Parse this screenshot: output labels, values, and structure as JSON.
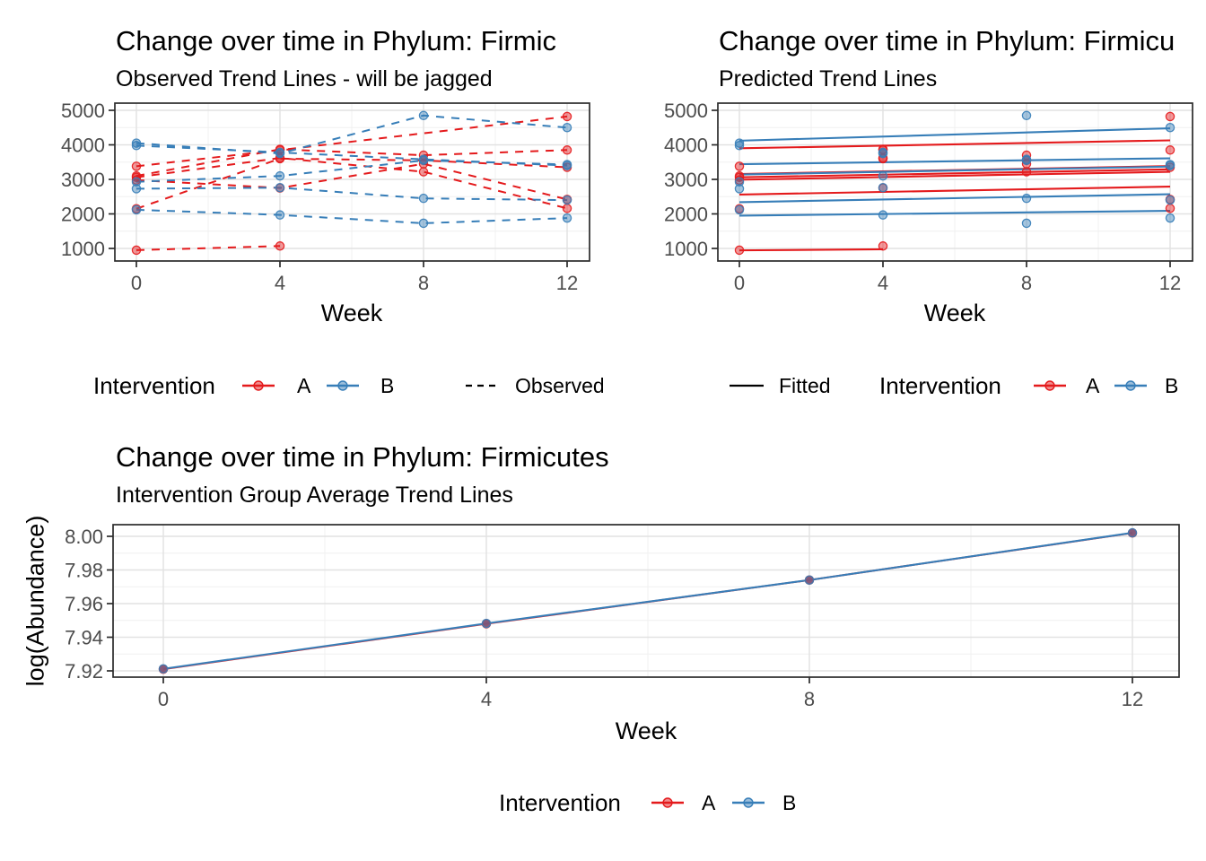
{
  "figure": {
    "background": "#FFFFFF"
  },
  "colors": {
    "group_a": "#E41A1C",
    "group_b": "#377EB8",
    "axis_text": "#4D4D4D",
    "title_text": "#000000",
    "grid_major": "#E2E2E2",
    "grid_minor": "#F0F0F0",
    "panel_border": "#2B2B2B",
    "legend_line": "#000000"
  },
  "charts": {
    "observed": {
      "title": "Change over time in Phylum: Firmic",
      "subtitle": "Observed Trend Lines - will be jagged",
      "xlabel": "Week"
    },
    "predicted": {
      "title": "Change over time in Phylum: Firmicu",
      "subtitle": "Predicted Trend Lines",
      "xlabel": "Week"
    },
    "average": {
      "title": "Change over time in Phylum: Firmicutes",
      "subtitle": "Intervention Group Average Trend Lines",
      "xlabel": "Week",
      "ylabel": "log(Abundance)"
    }
  },
  "legends": {
    "observed": {
      "title": "Intervention",
      "item_a": "A",
      "item_b": "B",
      "linetype_label": "Observed"
    },
    "predicted": {
      "linetype_label": "Fitted",
      "title": "Intervention",
      "item_a": "A",
      "item_b": "B"
    },
    "average": {
      "title": "Intervention",
      "item_a": "A",
      "item_b": "B"
    }
  },
  "chart_data": [
    {
      "id": "observed",
      "type": "line",
      "line_style": "dashed",
      "title": "Change over time in Phylum: Firmic",
      "subtitle": "Observed Trend Lines - will be jagged",
      "xlabel": "Week",
      "x": [
        0,
        4,
        8,
        12
      ],
      "x_tick_labels": [
        "0",
        "4",
        "8",
        "12"
      ],
      "x_minor": [
        2,
        6,
        10
      ],
      "y_ticks": [
        1000,
        2000,
        3000,
        4000,
        5000
      ],
      "y_tick_labels": [
        "1000",
        "2000",
        "3000",
        "4000",
        "5000"
      ],
      "y_minor": [
        1500,
        2500,
        3500,
        4500
      ],
      "xlim": [
        -0.6,
        12.6
      ],
      "ylim": [
        660,
        5190
      ],
      "legend_position": "bottom",
      "groups": {
        "A": "#E41A1C",
        "B": "#377EB8"
      },
      "subjects": [
        {
          "id": "A1",
          "group": "A",
          "values": [
            950,
            1070,
            null,
            null
          ]
        },
        {
          "id": "A2",
          "group": "A",
          "values": [
            2150,
            3600,
            3550,
            3350
          ]
        },
        {
          "id": "A3",
          "group": "A",
          "values": [
            3380,
            3850,
            null,
            4820
          ]
        },
        {
          "id": "A4",
          "group": "A",
          "values": [
            3100,
            3870,
            3700,
            3850
          ]
        },
        {
          "id": "A5",
          "group": "A",
          "values": [
            3060,
            3620,
            3220,
            2160
          ]
        },
        {
          "id": "A6",
          "group": "A",
          "values": [
            2980,
            2750,
            3450,
            2420
          ]
        },
        {
          "id": "B1",
          "group": "B",
          "values": [
            4050,
            3750,
            4850,
            4500
          ]
        },
        {
          "id": "B2",
          "group": "B",
          "values": [
            3980,
            3780,
            3580,
            3400
          ]
        },
        {
          "id": "B3",
          "group": "B",
          "values": [
            2930,
            3100,
            3550,
            3430
          ]
        },
        {
          "id": "B4",
          "group": "B",
          "values": [
            2730,
            2760,
            2450,
            2400
          ]
        },
        {
          "id": "B5",
          "group": "B",
          "values": [
            2120,
            1970,
            1730,
            1880
          ]
        }
      ]
    },
    {
      "id": "predicted",
      "type": "line",
      "line_style": "solid",
      "title": "Change over time in Phylum: Firmicu",
      "subtitle": "Predicted Trend Lines",
      "xlabel": "Week",
      "x": [
        0,
        4,
        8,
        12
      ],
      "x_tick_labels": [
        "0",
        "4",
        "8",
        "12"
      ],
      "x_minor": [
        2,
        6,
        10
      ],
      "y_ticks": [
        1000,
        2000,
        3000,
        4000,
        5000
      ],
      "y_tick_labels": [
        "1000",
        "2000",
        "3000",
        "4000",
        "5000"
      ],
      "y_minor": [
        1500,
        2500,
        3500,
        4500
      ],
      "xlim": [
        -0.6,
        12.6
      ],
      "ylim": [
        660,
        5190
      ],
      "legend_position": "bottom",
      "groups": {
        "A": "#E41A1C",
        "B": "#377EB8"
      },
      "subjects": [
        {
          "id": "A1",
          "group": "A",
          "values": [
            950,
            1070,
            null,
            null
          ],
          "fit_weeks": [
            0,
            4
          ],
          "fit_values": [
            945,
            975
          ]
        },
        {
          "id": "A2",
          "group": "A",
          "values": [
            2150,
            3600,
            3550,
            3350
          ],
          "fit_weeks": [
            0,
            12
          ],
          "fit_values": [
            3060,
            3290
          ]
        },
        {
          "id": "A3",
          "group": "A",
          "values": [
            3380,
            3850,
            null,
            4820
          ],
          "fit_weeks": [
            0,
            12
          ],
          "fit_values": [
            3900,
            4130
          ]
        },
        {
          "id": "A4",
          "group": "A",
          "values": [
            3100,
            3870,
            3700,
            3850
          ],
          "fit_weeks": [
            0,
            12
          ],
          "fit_values": [
            3155,
            3385
          ]
        },
        {
          "id": "A5",
          "group": "A",
          "values": [
            3060,
            3620,
            3220,
            2160
          ],
          "fit_weeks": [
            0,
            12
          ],
          "fit_values": [
            2990,
            3220
          ]
        },
        {
          "id": "A6",
          "group": "A",
          "values": [
            2980,
            2750,
            3450,
            2420
          ],
          "fit_weeks": [
            0,
            12
          ],
          "fit_values": [
            2560,
            2790
          ]
        },
        {
          "id": "B1",
          "group": "B",
          "values": [
            4050,
            3750,
            4850,
            4500
          ],
          "fit_weeks": [
            0,
            12
          ],
          "fit_values": [
            4120,
            4480
          ]
        },
        {
          "id": "B2",
          "group": "B",
          "values": [
            3980,
            3780,
            3580,
            3400
          ],
          "fit_weeks": [
            0,
            12
          ],
          "fit_values": [
            3440,
            3610
          ]
        },
        {
          "id": "B3",
          "group": "B",
          "values": [
            2930,
            3100,
            3550,
            3430
          ],
          "fit_weeks": [
            0,
            12
          ],
          "fit_values": [
            3140,
            3370
          ]
        },
        {
          "id": "B4",
          "group": "B",
          "values": [
            2730,
            2760,
            2450,
            2400
          ],
          "fit_weeks": [
            0,
            12
          ],
          "fit_values": [
            2340,
            2570
          ]
        },
        {
          "id": "B5",
          "group": "B",
          "values": [
            2120,
            1970,
            1730,
            1880
          ],
          "fit_weeks": [
            0,
            12
          ],
          "fit_values": [
            1950,
            2090
          ]
        }
      ]
    },
    {
      "id": "average",
      "type": "line",
      "line_style": "solid",
      "title": "Change over time in Phylum: Firmicutes",
      "subtitle": "Intervention Group Average Trend Lines",
      "xlabel": "Week",
      "ylabel": "log(Abundance)",
      "x": [
        0,
        4,
        8,
        12
      ],
      "x_tick_labels": [
        "0",
        "4",
        "8",
        "12"
      ],
      "x_minor": [
        2,
        6,
        10
      ],
      "y_ticks": [
        7.92,
        7.94,
        7.96,
        7.98,
        8.0
      ],
      "y_tick_labels": [
        "7.92",
        "7.94",
        "7.96",
        "7.98",
        "8.00"
      ],
      "y_minor": [
        7.93,
        7.95,
        7.97,
        7.99
      ],
      "xlim": [
        -0.65,
        12.6
      ],
      "ylim": [
        7.915,
        8.0065
      ],
      "legend_position": "bottom",
      "series": [
        {
          "name": "A",
          "color": "#E41A1C",
          "values": [
            7.921,
            7.948,
            7.974,
            8.002
          ]
        },
        {
          "name": "B",
          "color": "#377EB8",
          "values": [
            7.9212,
            7.9482,
            7.974,
            8.0021
          ]
        }
      ]
    }
  ]
}
